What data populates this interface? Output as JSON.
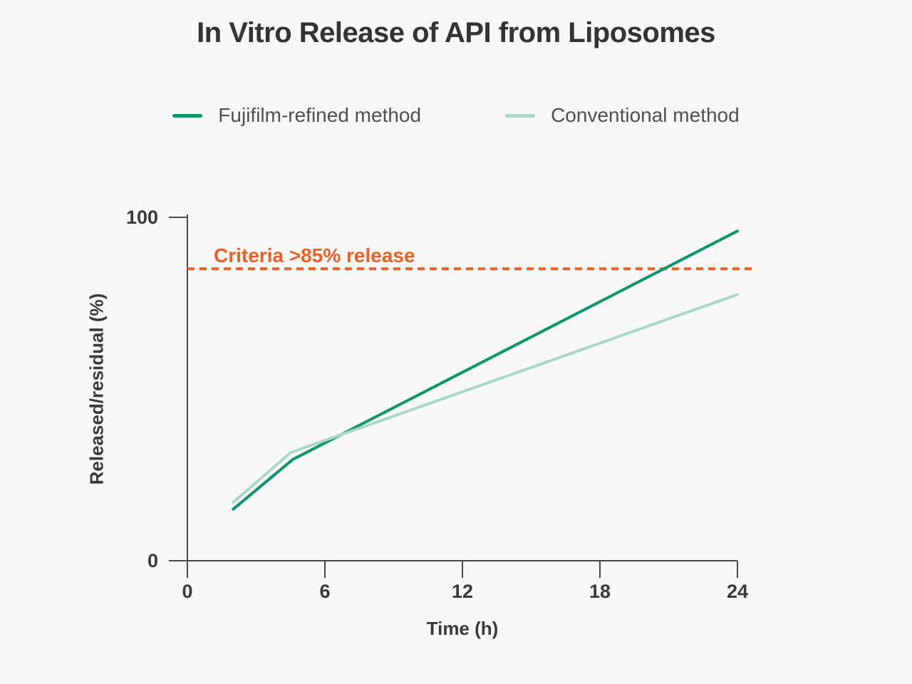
{
  "title": "In Vitro Release of API from Liposomes",
  "legend": [
    {
      "label": "Fujifilm-refined method",
      "color": "#0d9669"
    },
    {
      "label": "Conventional method",
      "color": "#aad8c7"
    }
  ],
  "chart_data": {
    "type": "line",
    "title": "In Vitro Release of API from Liposomes",
    "xlabel": "Time (h)",
    "ylabel": "Released/residual (%)",
    "xlim": [
      0,
      24
    ],
    "ylim": [
      0,
      100
    ],
    "x_ticks": [
      0,
      6,
      12,
      18,
      24
    ],
    "y_ticks": [
      0,
      100
    ],
    "grid": false,
    "legend_position": "top",
    "series": [
      {
        "name": "Fujifilm-refined method",
        "color": "#0d9669",
        "points": [
          [
            2,
            15
          ],
          [
            4.6,
            29.5
          ],
          [
            24,
            96
          ]
        ]
      },
      {
        "name": "Conventional method",
        "color": "#aad8c7",
        "points": [
          [
            2,
            17
          ],
          [
            4.5,
            31.5
          ],
          [
            24,
            77.5
          ]
        ]
      }
    ],
    "criteria": {
      "label": "Criteria >85% release",
      "value": 85,
      "color": "#ee5f20",
      "style": "dashed"
    }
  }
}
